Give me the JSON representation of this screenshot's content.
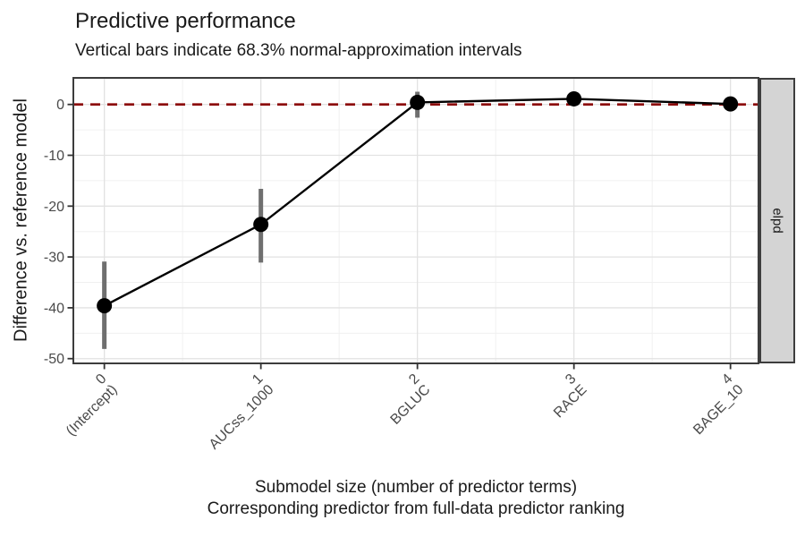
{
  "chart_data": {
    "type": "line",
    "title": "Predictive performance",
    "subtitle": "Vertical bars indicate 68.3% normal-approximation intervals",
    "xlabel_line1": "Submodel size (number of predictor terms)",
    "xlabel_line2": "Corresponding predictor from full-data predictor ranking",
    "ylabel": "Difference vs. reference model",
    "facet_label": "elpd",
    "x": [
      0,
      1,
      2,
      3,
      4
    ],
    "x_tick_predictors": [
      "(Intercept)",
      "AUCss_1000",
      "BGLUC",
      "RACE",
      "BAGE_10"
    ],
    "series": [
      {
        "name": "elpd difference vs. reference model",
        "est": [
          -39.6,
          -23.6,
          0.4,
          1.1,
          0.1
        ],
        "lower": [
          -48.1,
          -31.1,
          -2.6,
          0.2,
          -0.5
        ],
        "upper": [
          -30.9,
          -16.6,
          2.5,
          2.0,
          0.7
        ]
      }
    ],
    "y_ticks": [
      0,
      -10,
      -20,
      -30,
      -40,
      -50
    ],
    "y_minor_ticks": [
      5,
      -5,
      -15,
      -25,
      -35,
      -45
    ],
    "x_minor_ticks": [
      0.5,
      1.5,
      2.5,
      3.5
    ],
    "xlim": [
      -0.198,
      4.179
    ],
    "ylim": [
      -50.93,
      5.23
    ],
    "reference_line_y": 0,
    "grid": true,
    "legend": "none",
    "colors": {
      "point": "#000000",
      "line": "#000000",
      "interval": "#6f6f6f",
      "reference": "#8b0000",
      "grid_major": "#e2e2e2",
      "grid_minor": "#f0f0f0",
      "panel_border": "#3d3d3d",
      "tick": "#333333",
      "tick_label": "#4a4a4a",
      "strip_fill": "#d4d4d4"
    }
  }
}
